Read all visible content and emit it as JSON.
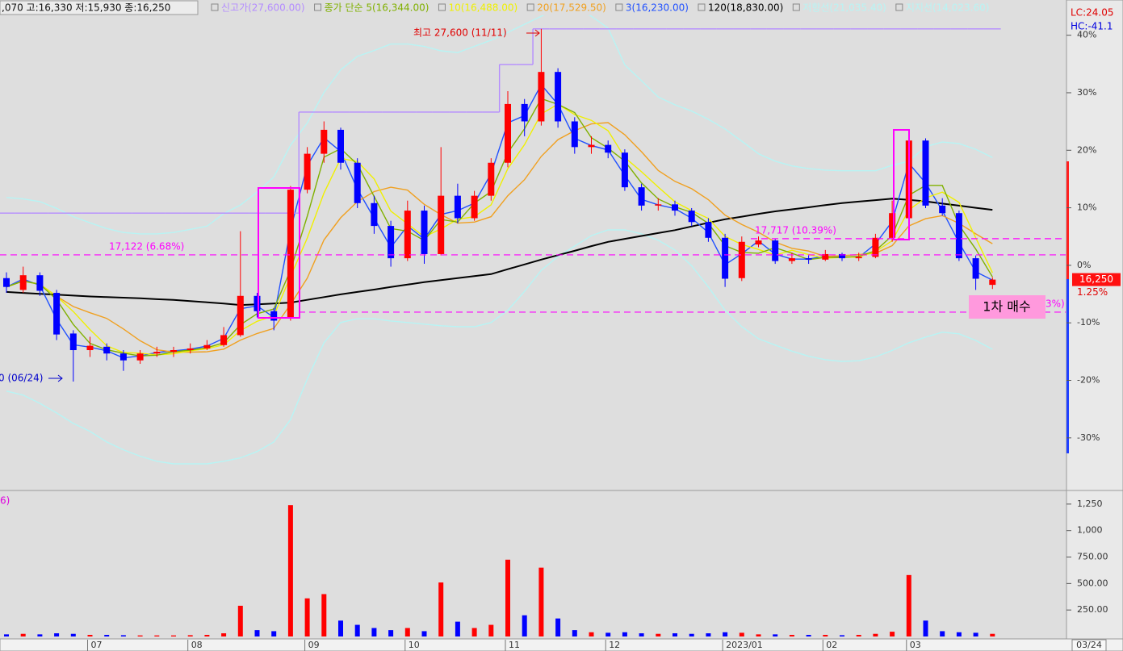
{
  "chart_data": {
    "type": "candlestick",
    "header": ",070 고:16,330 저:15,930 종:16,250",
    "corner_top": "LC:24.05",
    "corner_bottom": "HC:-41.1",
    "last_date": "03/24",
    "last_price_label": "16,250",
    "last_change_label": "1.25%",
    "high_note": "최고 27,600 (11/11)",
    "low_note": "0 (06/24)",
    "buy_note": "1차  매수",
    "volume_note": "6)",
    "up_color": "#ff0000",
    "down_color": "#0000ff",
    "log": true,
    "ylim": [
      10425,
      28940
    ],
    "y2lim": [
      -39,
      45
    ],
    "y2ticks": [
      {
        "value": 40,
        "label": "40%"
      },
      {
        "value": 30,
        "label": "30%"
      },
      {
        "value": 20,
        "label": "20%"
      },
      {
        "value": 10,
        "label": "10%"
      },
      {
        "value": 0,
        "label": "0%"
      },
      {
        "value": -10,
        "label": "-10%"
      },
      {
        "value": -20,
        "label": "-20%"
      },
      {
        "value": -30,
        "label": "-30%"
      }
    ],
    "categories": [
      null,
      null,
      null,
      null,
      null,
      "07",
      null,
      null,
      null,
      null,
      null,
      "08",
      null,
      null,
      null,
      null,
      null,
      null,
      "09",
      null,
      null,
      null,
      null,
      null,
      "10",
      null,
      null,
      null,
      null,
      null,
      "11",
      null,
      null,
      null,
      null,
      null,
      "12",
      null,
      null,
      null,
      null,
      null,
      null,
      "2023/01",
      null,
      null,
      null,
      null,
      null,
      "02",
      null,
      null,
      null,
      null,
      "03",
      null,
      null,
      null,
      null,
      null
    ],
    "open": [
      16300,
      15900,
      16400,
      15800,
      14500,
      14000,
      14100,
      13900,
      13700,
      13900,
      13950,
      14000,
      14050,
      14150,
      14450,
      15700,
      15200,
      15000,
      19650,
      21200,
      22300,
      20800,
      19100,
      18200,
      17000,
      18800,
      17150,
      19400,
      18500,
      19400,
      20800,
      23550,
      22700,
      25200,
      22700,
      21500,
      21600,
      21250,
      19750,
      19000,
      19050,
      18800,
      18350,
      17750,
      16300,
      17500,
      17650,
      16900,
      17000,
      16950,
      17150,
      17000,
      17050,
      17750,
      18500,
      21800,
      19000,
      18700,
      17000,
      16070
    ],
    "high": [
      16500,
      16700,
      16500,
      15900,
      14600,
      14400,
      14200,
      14000,
      14000,
      14100,
      14100,
      14200,
      14300,
      14700,
      18000,
      15800,
      15300,
      19800,
      21500,
      22700,
      22400,
      21000,
      19400,
      18400,
      19200,
      19000,
      21500,
      19900,
      19600,
      21000,
      24200,
      23800,
      27600,
      25400,
      22900,
      22000,
      21800,
      21400,
      19900,
      19300,
      19200,
      18900,
      18500,
      17900,
      17800,
      17800,
      17700,
      17200,
      17100,
      17300,
      17200,
      17200,
      17900,
      19200,
      22000,
      21900,
      19300,
      18800,
      17100,
      16330
    ],
    "low": [
      15800,
      15800,
      15700,
      14300,
      13100,
      13800,
      13700,
      13400,
      13600,
      13800,
      13800,
      13900,
      14000,
      14100,
      14400,
      15000,
      14600,
      14900,
      19500,
      20800,
      20500,
      18900,
      17900,
      16700,
      16900,
      16800,
      17100,
      18300,
      18400,
      19200,
      20600,
      22000,
      22500,
      22400,
      21200,
      21200,
      21000,
      19600,
      18800,
      18800,
      18600,
      18200,
      17600,
      16000,
      16200,
      17400,
      16800,
      16800,
      16800,
      16900,
      16900,
      16900,
      17000,
      17600,
      18400,
      18900,
      18600,
      16900,
      15900,
      15930
    ],
    "close": [
      16000,
      16400,
      15870,
      14470,
      14000,
      14130,
      13900,
      13700,
      13900,
      13950,
      14000,
      14050,
      14150,
      14450,
      15700,
      15200,
      14900,
      19650,
      21200,
      22300,
      20800,
      19100,
      18200,
      17000,
      18800,
      17150,
      19400,
      18500,
      19400,
      20800,
      23550,
      22700,
      25200,
      22700,
      21500,
      21600,
      21250,
      19750,
      19000,
      19050,
      18800,
      18350,
      17750,
      16280,
      17600,
      17650,
      16900,
      17000,
      16950,
      17150,
      17000,
      17050,
      17750,
      18700,
      21800,
      19000,
      18700,
      17000,
      16280,
      16250
    ],
    "series": [
      {
        "name": "신고가(27,600.00)",
        "color": "#b48cff",
        "style": "step",
        "values": [
          18700,
          18700,
          18700,
          18700,
          18700,
          18700,
          18700,
          18700,
          18700,
          18700,
          18700,
          18700,
          18700,
          18700,
          18700,
          18700,
          18700,
          18700,
          23150,
          23150,
          23150,
          23150,
          23150,
          23150,
          23150,
          23150,
          23150,
          23150,
          23150,
          23150,
          25600,
          25600,
          27600,
          27600,
          27600,
          27600,
          27600,
          27600,
          27600,
          27600,
          27600,
          27600,
          27600,
          27600,
          27600,
          27600,
          27600,
          27600,
          27600,
          27600,
          27600,
          27600,
          27600,
          27600,
          27600,
          27600,
          27600,
          27600,
          27600,
          27600
        ]
      },
      {
        "name": "종가 단순 5(16,344.00)",
        "color": "#80b000",
        "values": [
          16000,
          16200,
          16090,
          15580,
          14780,
          14200,
          14010,
          13910,
          13830,
          13850,
          13950,
          14000,
          14070,
          14220,
          14770,
          15120,
          15270,
          16580,
          18580,
          21050,
          21430,
          20730,
          19370,
          18100,
          18000,
          17650,
          18450,
          18350,
          19100,
          19570,
          21250,
          22350,
          23820,
          23530,
          23130,
          21930,
          21450,
          20870,
          19930,
          19270,
          18950,
          18730,
          18300,
          17460,
          17210,
          17180,
          17380,
          17180,
          16950,
          17030,
          17030,
          17070,
          17270,
          17830,
          19420,
          19830,
          19830,
          18230,
          17330,
          16344
        ]
      },
      {
        "name": "10(16,488.00)",
        "color": "#f0f000",
        "values": [
          16000,
          16200,
          16090,
          15690,
          15190,
          14620,
          14130,
          13930,
          13910,
          13860,
          13890,
          13980,
          14040,
          14160,
          14590,
          14880,
          15060,
          16360,
          17740,
          19510,
          20990,
          20860,
          20100,
          18780,
          18280,
          17790,
          18090,
          18460,
          18560,
          19030,
          20540,
          21610,
          23060,
          23540,
          23030,
          22750,
          22260,
          21030,
          20410,
          19760,
          19150,
          18800,
          18490,
          17800,
          17500,
          17320,
          17110,
          17290,
          17130,
          17000,
          17030,
          17040,
          17240,
          17640,
          18830,
          19310,
          19550,
          19130,
          17750,
          16488
        ]
      },
      {
        "name": "20(17,529.50)",
        "color": "#f0a020",
        "values": [
          16000,
          16200,
          16090,
          15690,
          15350,
          15150,
          14970,
          14640,
          14280,
          14010,
          13940,
          13940,
          13950,
          14030,
          14300,
          14500,
          14660,
          15420,
          16300,
          17670,
          18520,
          19160,
          19570,
          19750,
          19630,
          19050,
          18640,
          18310,
          18350,
          18560,
          19400,
          20070,
          21080,
          21840,
          22260,
          22580,
          22640,
          22070,
          21290,
          20460,
          20000,
          19690,
          19240,
          18620,
          18260,
          17960,
          17590,
          17360,
          17260,
          17060,
          17090,
          17130,
          17180,
          17460,
          18200,
          18480,
          18600,
          18300,
          17900,
          17529.5
        ]
      },
      {
        "name": "3(16,230.00)",
        "color": "#2050ff",
        "values": [
          16000,
          16270,
          16050,
          14940,
          14160,
          14090,
          13980,
          13770,
          13830,
          13930,
          13980,
          14030,
          14120,
          14350,
          15280,
          15370,
          15000,
          18070,
          20680,
          21930,
          21300,
          19670,
          18500,
          17400,
          18200,
          17700,
          18650,
          18800,
          19100,
          20330,
          22630,
          22980,
          24530,
          23530,
          21900,
          21570,
          21370,
          20250,
          19250,
          19030,
          18880,
          18500,
          17950,
          16770,
          17160,
          17630,
          17150,
          16970,
          16970,
          17080,
          17050,
          17030,
          17520,
          18370,
          20770,
          19930,
          18800,
          17570,
          16520,
          16230
        ]
      },
      {
        "name": "120(18,830.00)",
        "color": "#000000",
        "width": 2,
        "values": [
          15830,
          15800,
          15770,
          15740,
          15710,
          15680,
          15660,
          15640,
          15620,
          15590,
          15570,
          15530,
          15490,
          15450,
          15400,
          15420,
          15450,
          15480,
          15570,
          15660,
          15750,
          15830,
          15910,
          16000,
          16080,
          16160,
          16230,
          16300,
          16370,
          16440,
          16610,
          16780,
          16950,
          17110,
          17270,
          17440,
          17600,
          17710,
          17820,
          17930,
          18040,
          18180,
          18320,
          18460,
          18560,
          18670,
          18770,
          18850,
          18930,
          19020,
          19100,
          19160,
          19220,
          19280,
          19230,
          19170,
          19080,
          19000,
          18910,
          18830
        ]
      },
      {
        "name": "저항선(21,035.40)",
        "color": "#b8f4f4",
        "values": [
          19330,
          19270,
          19160,
          18890,
          18560,
          18320,
          18100,
          17950,
          17900,
          17900,
          17950,
          18070,
          18190,
          18680,
          19020,
          19550,
          20180,
          21590,
          22620,
          24130,
          25310,
          26040,
          26370,
          26730,
          26730,
          26600,
          26350,
          26250,
          26600,
          26950,
          27400,
          27870,
          28350,
          28770,
          28860,
          28350,
          27650,
          25580,
          24740,
          23900,
          23510,
          23200,
          22800,
          22340,
          21770,
          21200,
          20870,
          20660,
          20550,
          20480,
          20450,
          20450,
          20450,
          20690,
          20870,
          21520,
          21730,
          21660,
          21400,
          21035.4
        ]
      },
      {
        "name": "지지선(14,023.60)",
        "color": "#b8f4f4",
        "values": [
          12840,
          12730,
          12510,
          12260,
          11990,
          11790,
          11530,
          11340,
          11190,
          11070,
          11010,
          11010,
          11010,
          11070,
          11150,
          11300,
          11530,
          12090,
          13170,
          14220,
          14840,
          14960,
          14960,
          14890,
          14840,
          14790,
          14740,
          14710,
          14710,
          14840,
          15230,
          15850,
          16570,
          17060,
          17440,
          17830,
          18050,
          18050,
          17900,
          17660,
          17300,
          16730,
          16000,
          15230,
          14710,
          14340,
          14150,
          13970,
          13820,
          13720,
          13670,
          13690,
          13800,
          13990,
          14220,
          14390,
          14540,
          14490,
          14290,
          14023.6
        ]
      }
    ],
    "levels": [
      {
        "value": 17122,
        "label": "17,122 (6.68%)"
      },
      {
        "value": 17717,
        "label": "17,717 (10.39%)"
      },
      {
        "value": 15170,
        "label": "3%)"
      }
    ],
    "level_color": "#ff00ff",
    "volume": {
      "values": [
        20,
        25,
        20,
        30,
        25,
        15,
        15,
        12,
        10,
        10,
        10,
        12,
        15,
        30,
        290,
        60,
        50,
        1240,
        360,
        400,
        150,
        110,
        80,
        60,
        80,
        50,
        510,
        140,
        80,
        110,
        725,
        200,
        650,
        170,
        60,
        40,
        35,
        40,
        30,
        25,
        30,
        25,
        30,
        40,
        35,
        20,
        20,
        15,
        15,
        15,
        12,
        15,
        25,
        45,
        580,
        150,
        50,
        40,
        35,
        25
      ],
      "ylim": [
        0,
        1348
      ],
      "yticks": [
        {
          "value": 1250,
          "label": "1,250"
        },
        {
          "value": 1000,
          "label": "1,000"
        },
        {
          "value": 750,
          "label": "750.00"
        },
        {
          "value": 500,
          "label": "500.00"
        },
        {
          "value": 250,
          "label": "250.00"
        }
      ]
    }
  }
}
